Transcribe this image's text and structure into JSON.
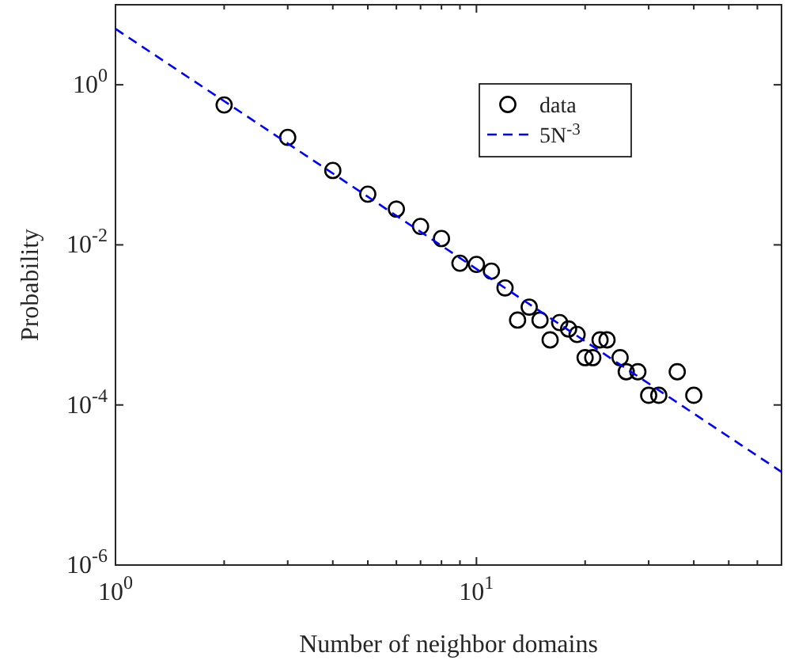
{
  "chart_data": {
    "type": "scatter",
    "xlabel": "Number of neighbor domains",
    "ylabel": "Probability",
    "log": "xy",
    "grid": false,
    "legend": "top right",
    "xlim": [
      1,
      70
    ],
    "ylim": [
      1e-06,
      10
    ],
    "xticks": [
      {
        "value": 1,
        "label": "10$^{0}$"
      },
      {
        "value": 2,
        "label": null
      },
      {
        "value": 3,
        "label": null
      },
      {
        "value": 4,
        "label": null
      },
      {
        "value": 5,
        "label": null
      },
      {
        "value": 6,
        "label": null
      },
      {
        "value": 7,
        "label": null
      },
      {
        "value": 8,
        "label": null
      },
      {
        "value": 9,
        "label": null
      },
      {
        "value": 10,
        "label": "10$^{1}$"
      },
      {
        "value": 20,
        "label": null
      },
      {
        "value": 30,
        "label": null
      },
      {
        "value": 40,
        "label": null
      },
      {
        "value": 50,
        "label": null
      },
      {
        "value": 60,
        "label": null
      }
    ],
    "yticks": [
      {
        "value": 1e-06,
        "label": "10$^{-6}$"
      },
      {
        "value": 0.0001,
        "label": "10$^{-4}$"
      },
      {
        "value": 0.01,
        "label": "10$^{-2}$"
      },
      {
        "value": 1,
        "label": "10$^{0}$"
      }
    ],
    "series": [
      {
        "name": "data",
        "color": "#000000",
        "marker": "circle",
        "x": [
          2,
          3,
          4,
          5,
          6,
          7,
          8,
          9,
          10,
          11,
          12,
          13,
          14,
          15,
          16,
          17,
          18,
          19,
          20,
          21,
          22,
          23,
          25,
          26,
          28,
          30,
          32,
          36,
          40
        ],
        "values": [
          0.56,
          0.22,
          0.085,
          0.043,
          0.028,
          0.017,
          0.012,
          0.0059,
          0.0057,
          0.0047,
          0.0029,
          0.00115,
          0.00167,
          0.00115,
          0.00065,
          0.00107,
          0.00089,
          0.00076,
          0.00039,
          0.00039,
          0.00065,
          0.00065,
          0.00039,
          0.00026,
          0.00026,
          0.000132,
          0.000132,
          0.00026,
          0.000132
        ]
      },
      {
        "name": "5N$^{-3}$",
        "type": "line",
        "color": "#0000ff",
        "line_style": "dashed",
        "x": [
          1,
          70
        ],
        "values": [
          5,
          1.458e-05
        ]
      }
    ]
  }
}
